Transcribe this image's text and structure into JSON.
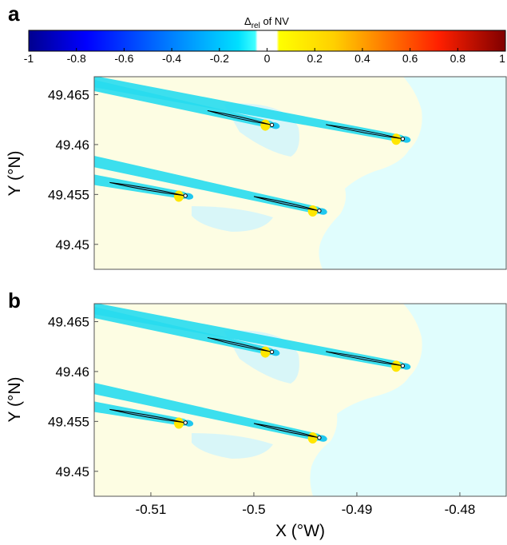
{
  "chart_data": {
    "type": "heatmap",
    "colorbar": {
      "label_delta": "Δ",
      "label_sub": "rel",
      "label_rest": " of NV",
      "range": [
        -1,
        1
      ],
      "ticks": [
        "-1",
        "-0.8",
        "-0.6",
        "-0.4",
        "-0.2",
        "0",
        "0.2",
        "0.4",
        "0.6",
        "0.8",
        "1"
      ],
      "colormap": "jet-like with white band near 0"
    },
    "xlabel": "X (°W)",
    "ylabel": "Y (°N)",
    "xlim": [
      -0.5155,
      -0.4755
    ],
    "ylim": [
      49.4475,
      49.4668
    ],
    "x_ticks": [
      "-0.51",
      "-0.5",
      "-0.49",
      "-0.48"
    ],
    "y_ticks": [
      "49.465",
      "49.46",
      "49.455",
      "49.45"
    ],
    "colors": {
      "background_positive": "#fdfde3",
      "background_negative": "#e0fdfd",
      "wake": "#27dbee",
      "wake_light": "#a9eef6",
      "positive_blob": "#ffe600",
      "turbine_outline": "#000000"
    },
    "panels": [
      {
        "letter": "a",
        "turbines": [
          {
            "x0": -0.5045,
            "y0": 49.4634,
            "x1": -0.4984,
            "y1": 49.462
          },
          {
            "x0": -0.493,
            "y0": 49.462,
            "x1": -0.4857,
            "y1": 49.4606
          },
          {
            "x0": -0.514,
            "y0": 49.4562,
            "x1": -0.5068,
            "y1": 49.4549
          },
          {
            "x0": -0.5,
            "y0": 49.4548,
            "x1": -0.4938,
            "y1": 49.4534
          }
        ]
      },
      {
        "letter": "b",
        "turbines": [
          {
            "x0": -0.5045,
            "y0": 49.4634,
            "x1": -0.4984,
            "y1": 49.462
          },
          {
            "x0": -0.493,
            "y0": 49.462,
            "x1": -0.4857,
            "y1": 49.4606
          },
          {
            "x0": -0.514,
            "y0": 49.4562,
            "x1": -0.5068,
            "y1": 49.4549
          },
          {
            "x0": -0.5,
            "y0": 49.4548,
            "x1": -0.4938,
            "y1": 49.4534
          }
        ]
      }
    ]
  }
}
